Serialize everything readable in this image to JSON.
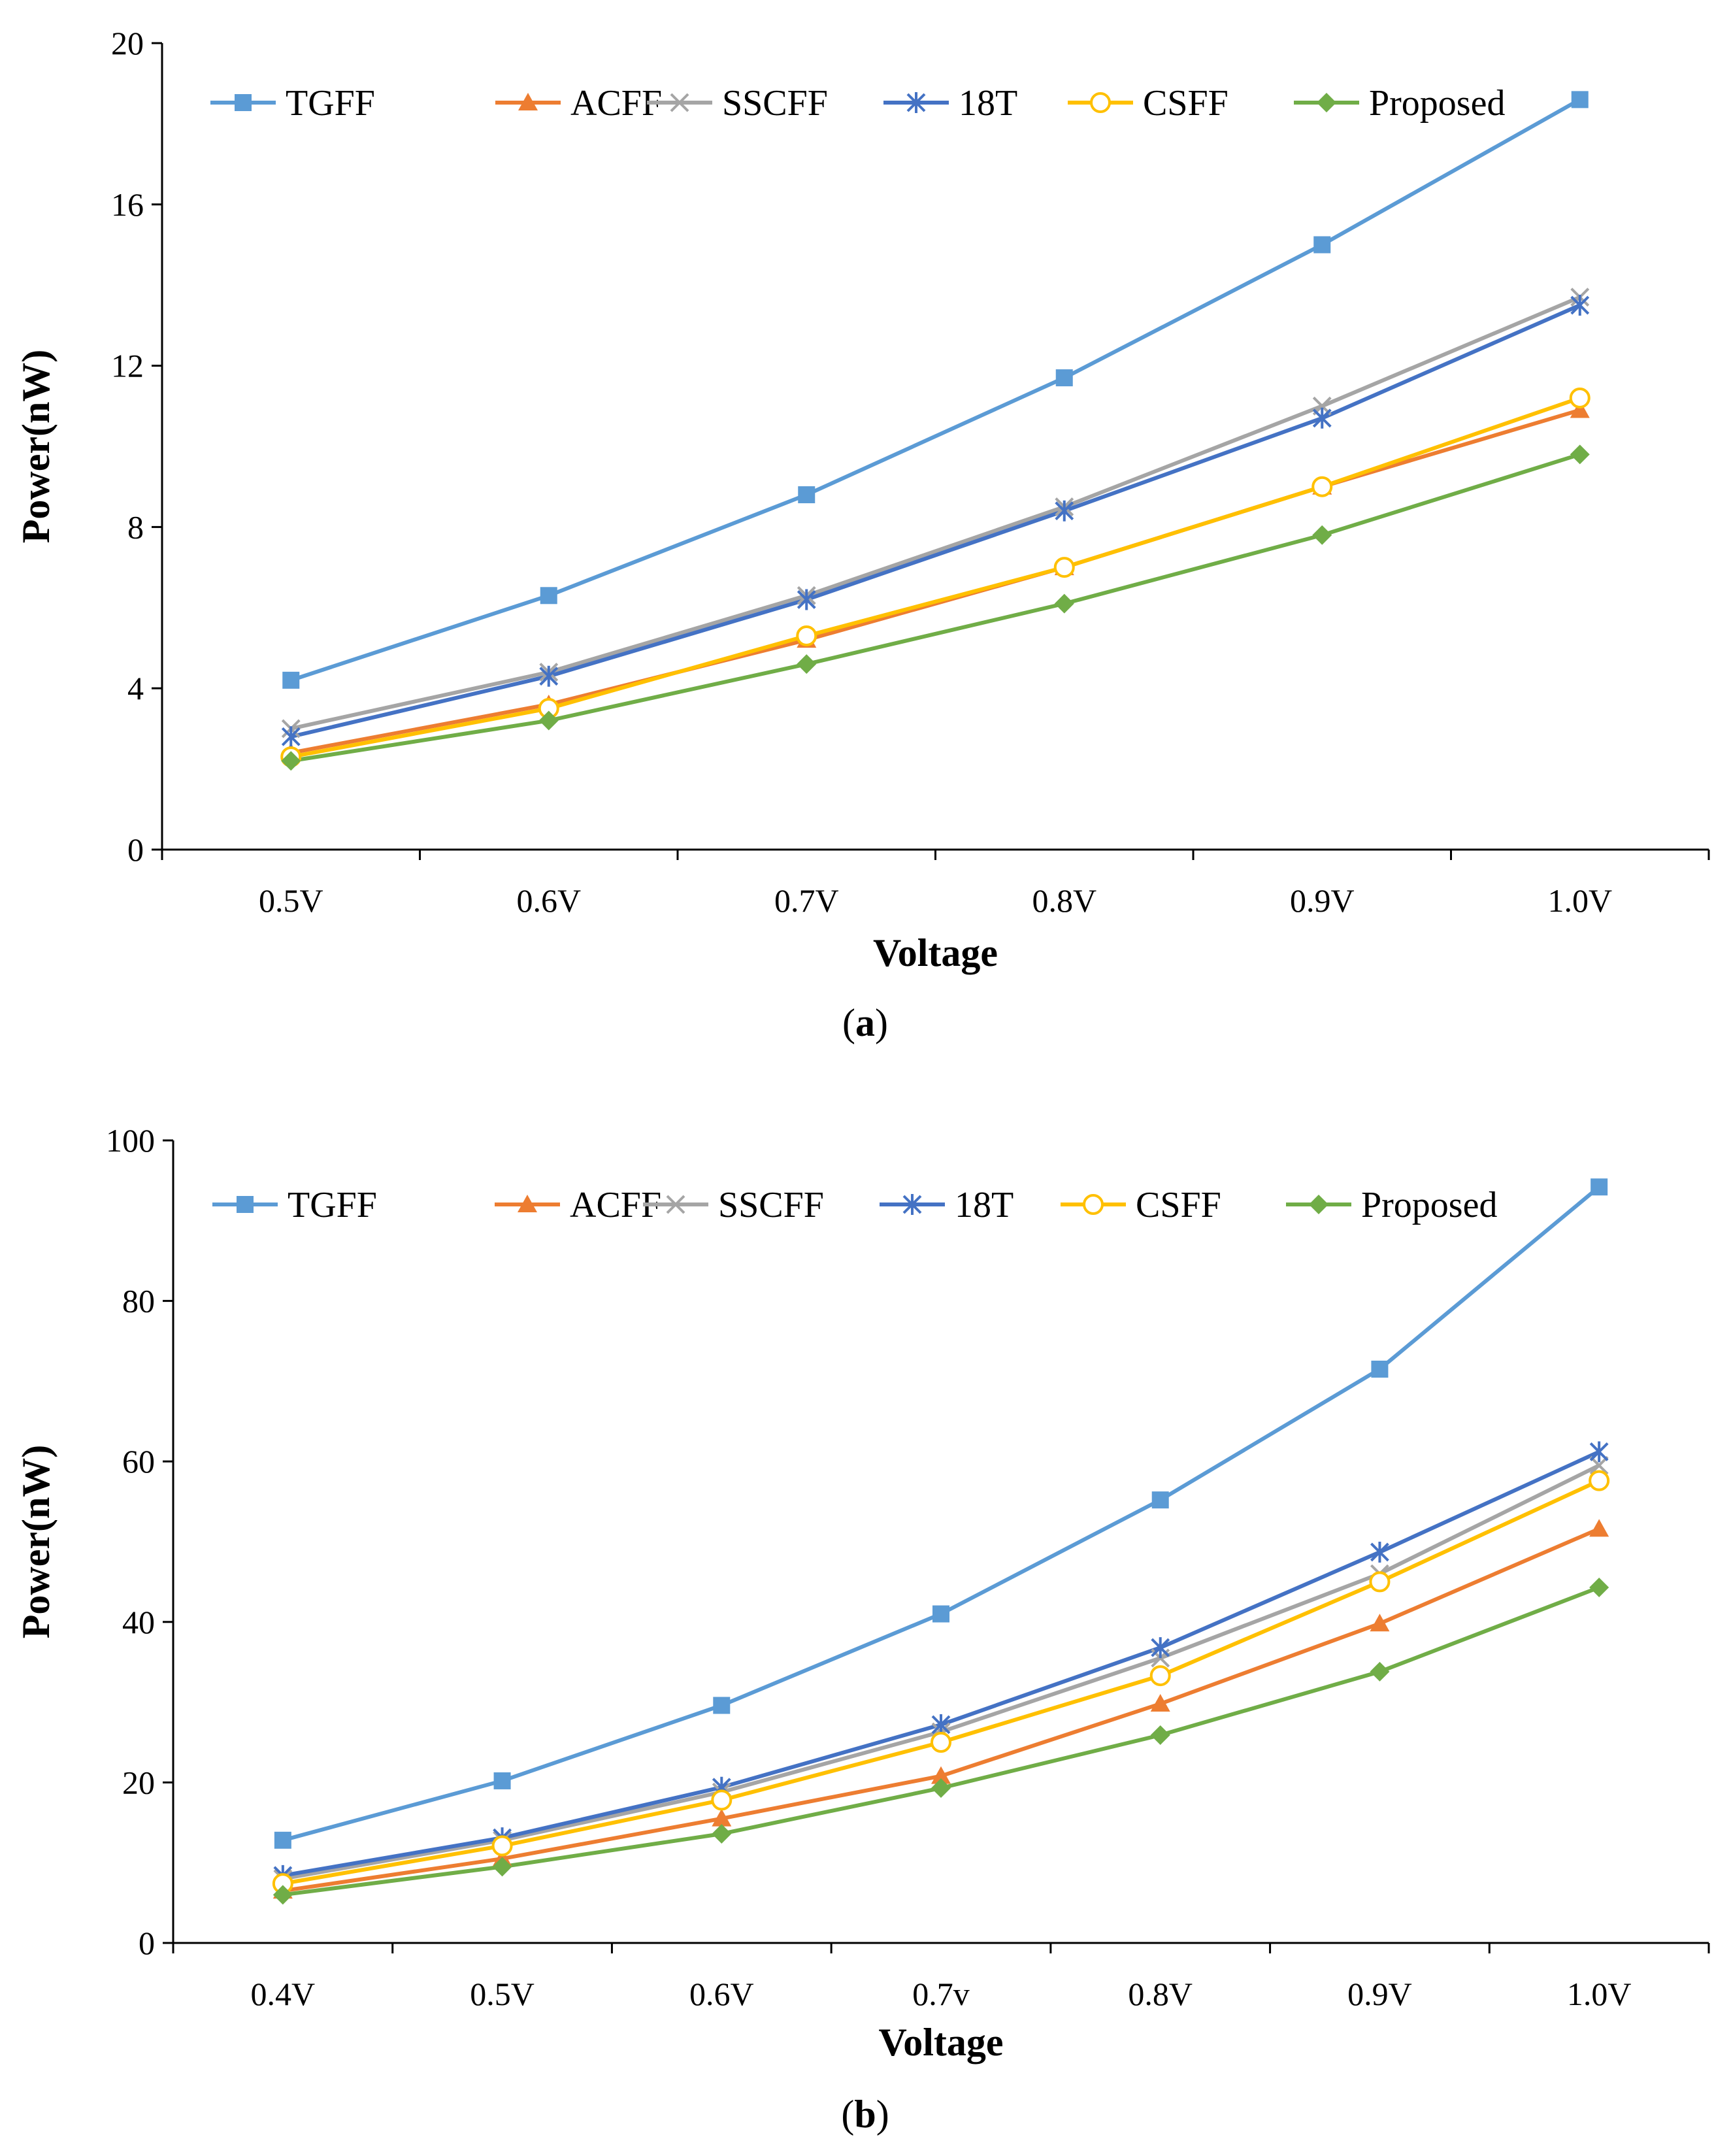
{
  "chart_data": [
    {
      "type": "line",
      "panel_label": "a",
      "xlabel": "Voltage",
      "ylabel": "Power(nW)",
      "categories": [
        "0.5V",
        "0.6V",
        "0.7V",
        "0.8V",
        "0.9V",
        "1.0V"
      ],
      "ylim": [
        0,
        20
      ],
      "yticks": [
        0,
        4,
        8,
        12,
        16,
        20
      ],
      "grid": false,
      "legend": "top",
      "series": [
        {
          "name": "TGFF",
          "color": "#5B9BD5",
          "marker": "square",
          "values": [
            4.2,
            6.3,
            8.8,
            11.7,
            15.0,
            18.6
          ]
        },
        {
          "name": "ACFF",
          "color": "#ED7D31",
          "marker": "triangle",
          "values": [
            2.4,
            3.6,
            5.2,
            7.0,
            9.0,
            10.9
          ]
        },
        {
          "name": "SSCFF",
          "color": "#A5A5A5",
          "marker": "x",
          "values": [
            3.0,
            4.4,
            6.3,
            8.5,
            11.0,
            13.7
          ]
        },
        {
          "name": "18T",
          "color": "#4472C4",
          "marker": "star",
          "values": [
            2.8,
            4.3,
            6.2,
            8.4,
            10.7,
            13.5
          ]
        },
        {
          "name": "CSFF",
          "color": "#FFC000",
          "marker": "circle",
          "values": [
            2.3,
            3.5,
            5.3,
            7.0,
            9.0,
            11.2
          ]
        },
        {
          "name": "Proposed",
          "color": "#70AD47",
          "marker": "diamond",
          "values": [
            2.2,
            3.2,
            4.6,
            6.1,
            7.8,
            9.8
          ]
        }
      ]
    },
    {
      "type": "line",
      "panel_label": "b",
      "xlabel": "Voltage",
      "ylabel": "Power(nW)",
      "categories": [
        "0.4V",
        "0.5V",
        "0.6V",
        "0.7v",
        "0.8V",
        "0.9V",
        "1.0V"
      ],
      "ylim": [
        0,
        100
      ],
      "yticks": [
        0,
        20,
        40,
        60,
        80,
        100
      ],
      "grid": false,
      "legend": "top",
      "series": [
        {
          "name": "TGFF",
          "color": "#5B9BD5",
          "marker": "square",
          "values": [
            12.8,
            20.2,
            29.6,
            41.0,
            55.2,
            71.5,
            94.2
          ]
        },
        {
          "name": "ACFF",
          "color": "#ED7D31",
          "marker": "triangle",
          "values": [
            6.5,
            10.5,
            15.5,
            20.8,
            29.8,
            39.8,
            51.6
          ]
        },
        {
          "name": "SSCFF",
          "color": "#A5A5A5",
          "marker": "x",
          "values": [
            8.0,
            12.8,
            18.8,
            26.3,
            35.5,
            46.0,
            59.5
          ]
        },
        {
          "name": "18T",
          "color": "#4472C4",
          "marker": "star",
          "values": [
            8.4,
            13.1,
            19.4,
            27.2,
            36.8,
            48.7,
            61.2
          ]
        },
        {
          "name": "CSFF",
          "color": "#FFC000",
          "marker": "circle",
          "values": [
            7.4,
            12.1,
            17.8,
            25.0,
            33.3,
            45.0,
            57.6
          ]
        },
        {
          "name": "Proposed",
          "color": "#70AD47",
          "marker": "diamond",
          "values": [
            6.0,
            9.5,
            13.6,
            19.3,
            25.9,
            33.8,
            44.3
          ]
        }
      ]
    }
  ]
}
